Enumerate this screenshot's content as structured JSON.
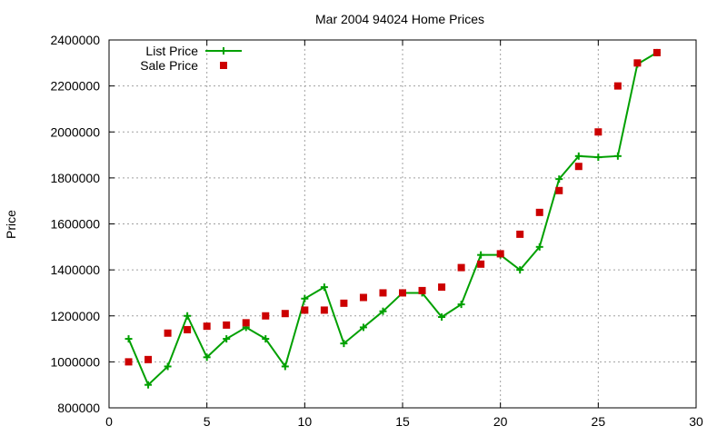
{
  "chart_data": {
    "type": "line",
    "title": "Mar 2004 94024 Home Prices",
    "xlabel": "",
    "ylabel": "Price",
    "xlim": [
      0,
      30
    ],
    "ylim": [
      800000,
      2400000
    ],
    "x_ticks": [
      0,
      5,
      10,
      15,
      20,
      25,
      30
    ],
    "y_ticks": [
      800000,
      1000000,
      1200000,
      1400000,
      1600000,
      1800000,
      2000000,
      2200000,
      2400000
    ],
    "x_tick_labels": [
      "0",
      "5",
      "10",
      "15",
      "20",
      "25",
      "30"
    ],
    "y_tick_labels": [
      "800000",
      "1000000",
      "1200000",
      "1400000",
      "1600000",
      "1800000",
      "2000000",
      "2200000",
      "2400000"
    ],
    "grid": true,
    "legend_position": "top-left",
    "series": [
      {
        "name": "List Price",
        "style": "lines+points",
        "marker": "plus",
        "color": "#00a000",
        "x": [
          1,
          2,
          3,
          4,
          5,
          6,
          7,
          8,
          9,
          10,
          11,
          12,
          13,
          14,
          15,
          16,
          17,
          18,
          19,
          20,
          21,
          22,
          23,
          24,
          25,
          26,
          27,
          28
        ],
        "y": [
          1100000,
          900000,
          980000,
          1200000,
          1020000,
          1100000,
          1150000,
          1100000,
          980000,
          1275000,
          1325000,
          1080000,
          1150000,
          1220000,
          1300000,
          1300000,
          1195000,
          1250000,
          1465000,
          1465000,
          1400000,
          1500000,
          1795000,
          1895000,
          1890000,
          1895000,
          2295000,
          2345000
        ]
      },
      {
        "name": "Sale Price",
        "style": "points",
        "marker": "square",
        "color": "#cc0000",
        "x": [
          1,
          2,
          3,
          4,
          5,
          6,
          7,
          8,
          9,
          10,
          11,
          12,
          13,
          14,
          15,
          16,
          17,
          18,
          19,
          20,
          21,
          22,
          23,
          24,
          25,
          26,
          27,
          28
        ],
        "y": [
          1000000,
          1010000,
          1125000,
          1140000,
          1155000,
          1160000,
          1170000,
          1200000,
          1210000,
          1225000,
          1225000,
          1255000,
          1280000,
          1300000,
          1300000,
          1310000,
          1325000,
          1410000,
          1425000,
          1470000,
          1555000,
          1650000,
          1745000,
          1850000,
          2000000,
          2200000,
          2300000,
          2345000
        ]
      }
    ]
  }
}
